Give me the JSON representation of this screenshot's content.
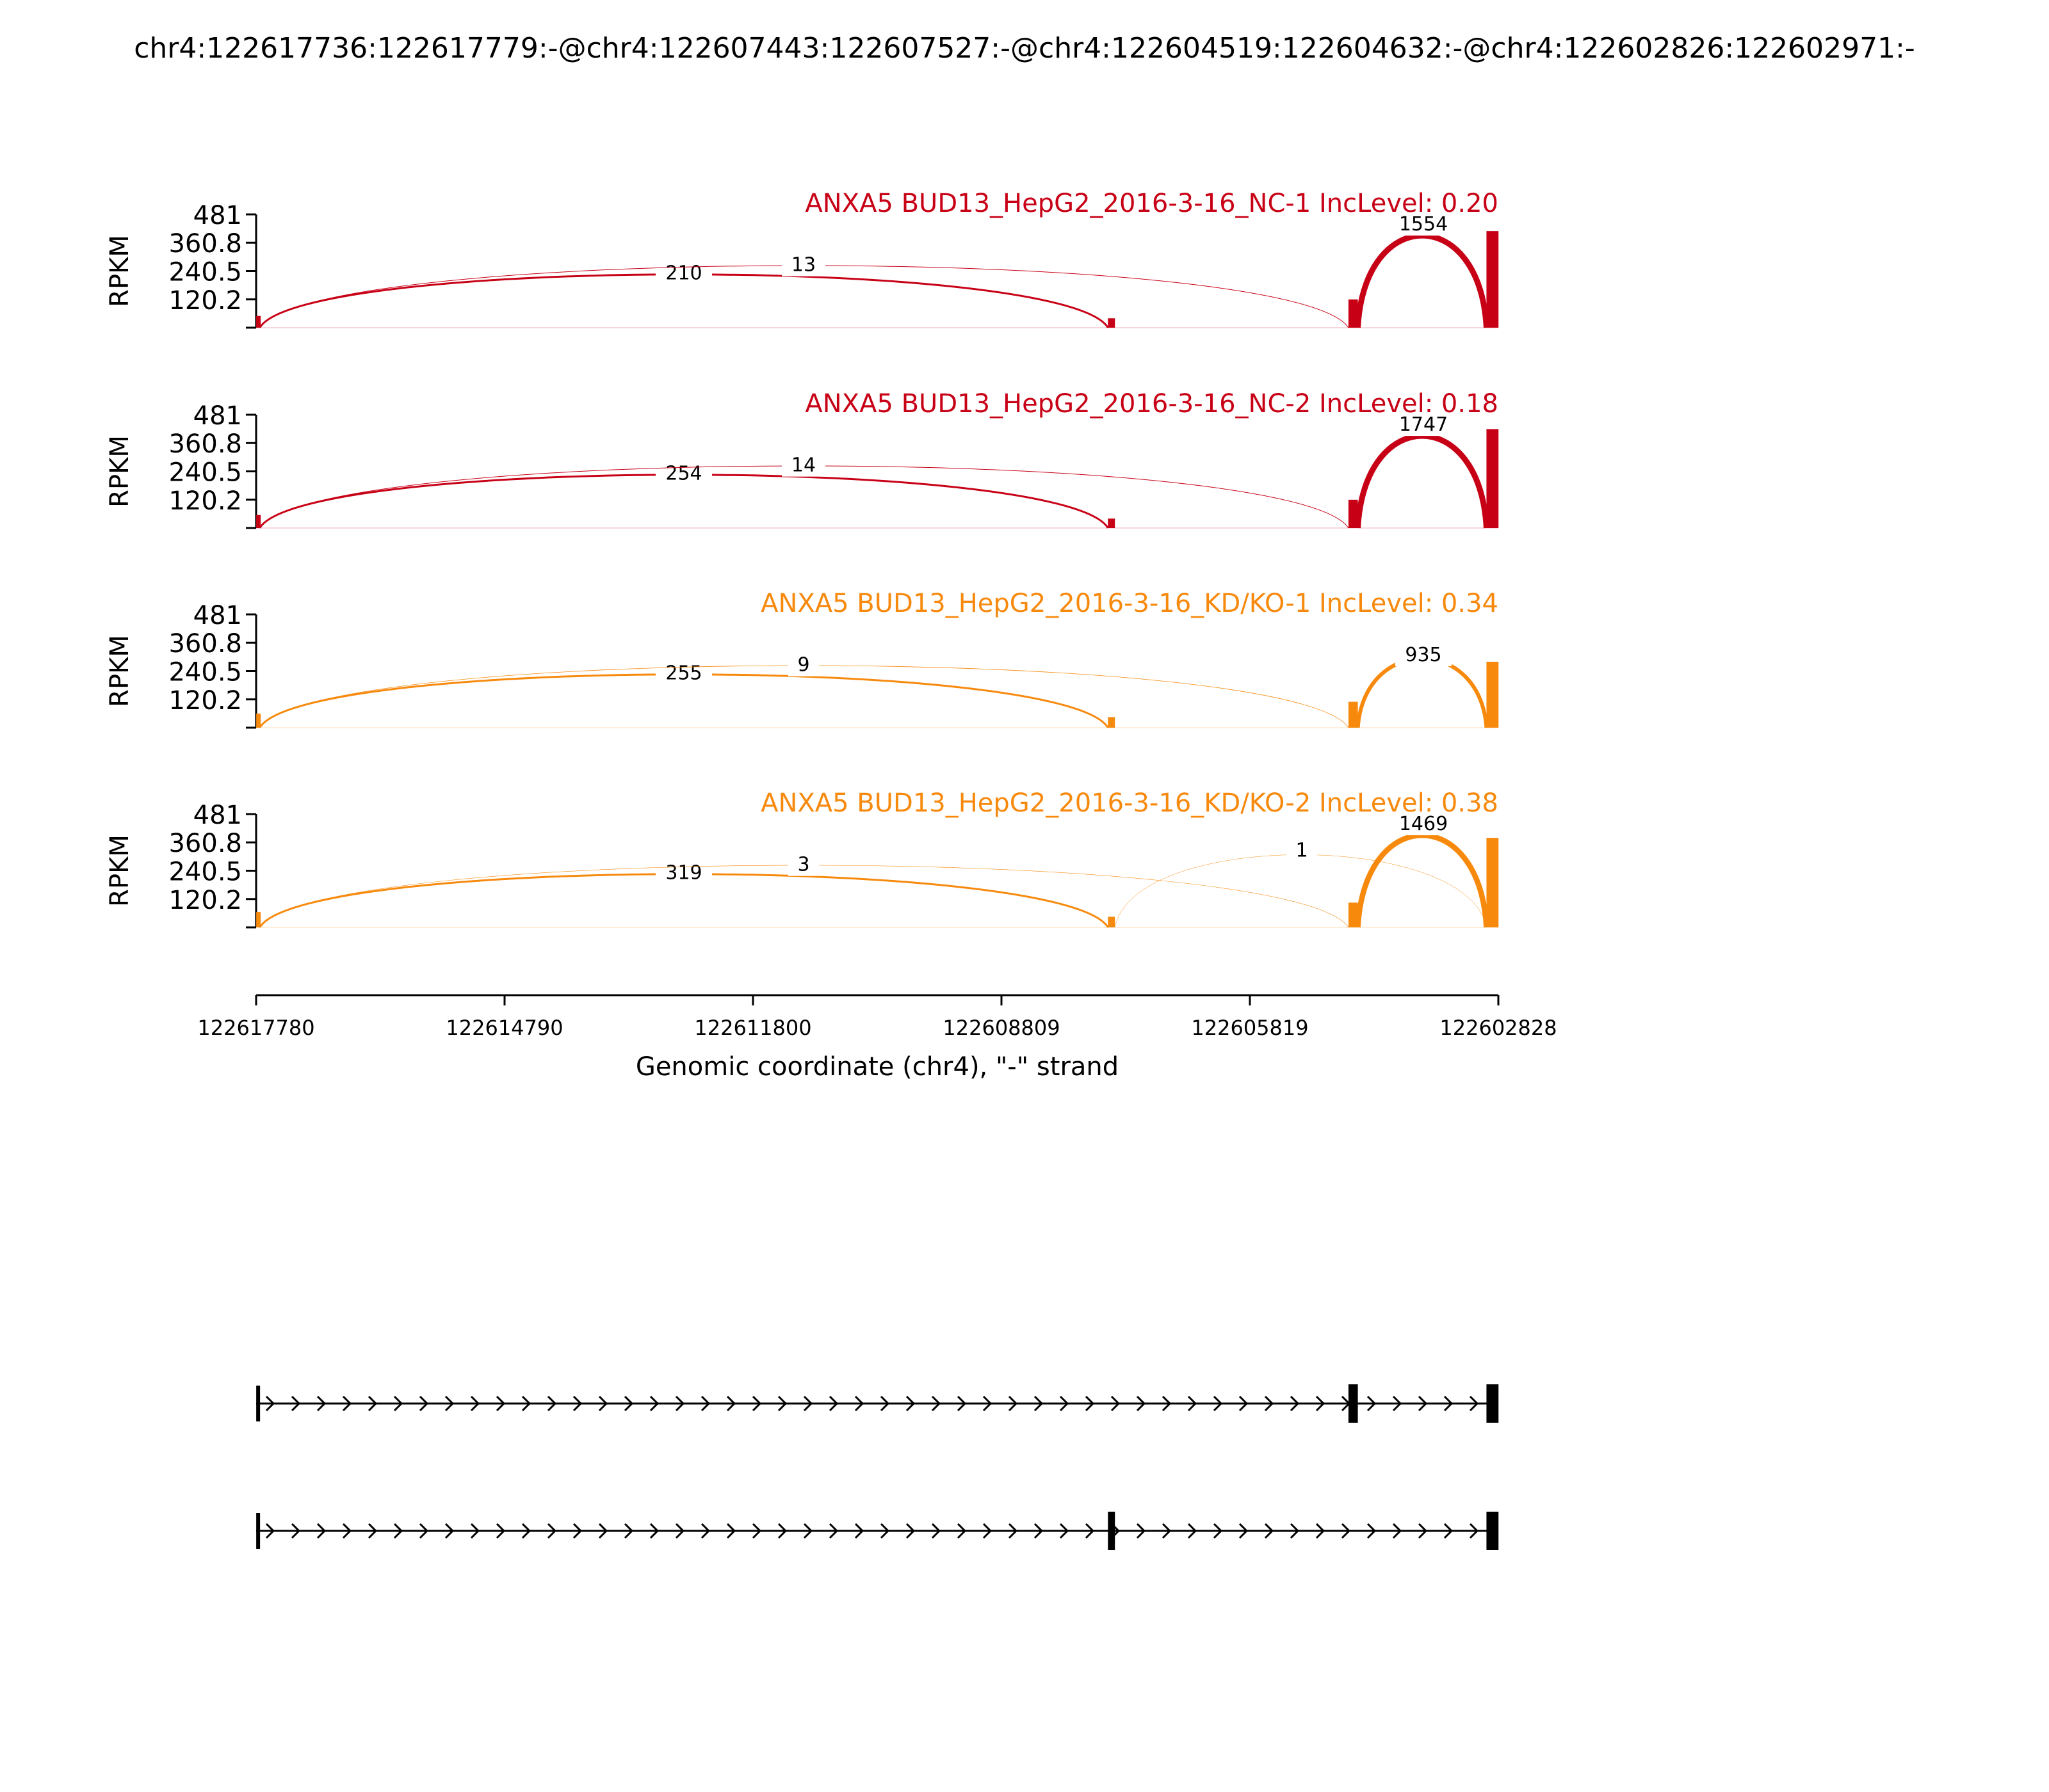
{
  "title": "chr4:122617736:122617779:-@chr4:122607443:122607527:-@chr4:122604519:122604632:-@chr4:122602826:122602971:-",
  "colors": {
    "nc": "#c80016",
    "kd": "#f7890d",
    "axis": "#000000"
  },
  "chart_data": {
    "type": "sashimi",
    "xlabel": "Genomic coordinate (chr4), \"-\" strand",
    "x_ticks": [
      "122617780",
      "122614790",
      "122611800",
      "122608809",
      "122605819",
      "122602828"
    ],
    "x_range": [
      122617780,
      122602828
    ],
    "ylabel": "RPKM",
    "y_ticks": [
      "481",
      "360.8",
      "240.5",
      "120.2"
    ],
    "ylim": [
      0,
      481
    ],
    "exons": [
      {
        "start": 122617779,
        "end": 122617736
      },
      {
        "start": 122607527,
        "end": 122607443
      },
      {
        "start": 122604632,
        "end": 122604519
      },
      {
        "start": 122602971,
        "end": 122602826
      }
    ],
    "panels": [
      {
        "label": "ANXA5 BUD13_HepG2_2016-3-16_NC-1 IncLevel: 0.20",
        "color": "nc",
        "coverage": [
          50,
          40,
          120,
          410
        ],
        "junctions": [
          {
            "from": 122617736,
            "to": 122607527,
            "count": "210",
            "width": 3.0
          },
          {
            "from": 122617736,
            "to": 122604632,
            "count": "13",
            "width": 1.0
          },
          {
            "from": 122604519,
            "to": 122602971,
            "count": "1554",
            "width": 9.0
          }
        ]
      },
      {
        "label": "ANXA5 BUD13_HepG2_2016-3-16_NC-2 IncLevel: 0.18",
        "color": "nc",
        "coverage": [
          55,
          40,
          120,
          420
        ],
        "junctions": [
          {
            "from": 122617736,
            "to": 122607527,
            "count": "254",
            "width": 3.0
          },
          {
            "from": 122617736,
            "to": 122604632,
            "count": "14",
            "width": 1.0
          },
          {
            "from": 122604519,
            "to": 122602971,
            "count": "1747",
            "width": 9.0
          }
        ]
      },
      {
        "label": "ANXA5 BUD13_HepG2_2016-3-16_KD/KO-1 IncLevel: 0.34",
        "color": "kd",
        "coverage": [
          60,
          45,
          110,
          280
        ],
        "junctions": [
          {
            "from": 122617736,
            "to": 122607527,
            "count": "255",
            "width": 3.0
          },
          {
            "from": 122617736,
            "to": 122604632,
            "count": "9",
            "width": 0.8
          },
          {
            "from": 122604519,
            "to": 122602971,
            "count": "935",
            "width": 6.0
          }
        ]
      },
      {
        "label": "ANXA5 BUD13_HepG2_2016-3-16_KD/KO-2 IncLevel: 0.38",
        "color": "kd",
        "coverage": [
          65,
          45,
          105,
          380
        ],
        "junctions": [
          {
            "from": 122617736,
            "to": 122607527,
            "count": "319",
            "width": 3.0
          },
          {
            "from": 122617736,
            "to": 122604632,
            "count": "3",
            "width": 0.6
          },
          {
            "from": 122607443,
            "to": 122602971,
            "count": "1",
            "width": 0.5
          },
          {
            "from": 122604519,
            "to": 122602971,
            "count": "1469",
            "width": 8.5
          }
        ]
      }
    ],
    "isoforms": [
      {
        "exons": [
          [
            122617779,
            122617736
          ],
          [
            122604632,
            122604519
          ],
          [
            122602971,
            122602826
          ]
        ]
      },
      {
        "exons": [
          [
            122617779,
            122617736
          ],
          [
            122607527,
            122607443
          ],
          [
            122602971,
            122602826
          ]
        ]
      }
    ]
  }
}
